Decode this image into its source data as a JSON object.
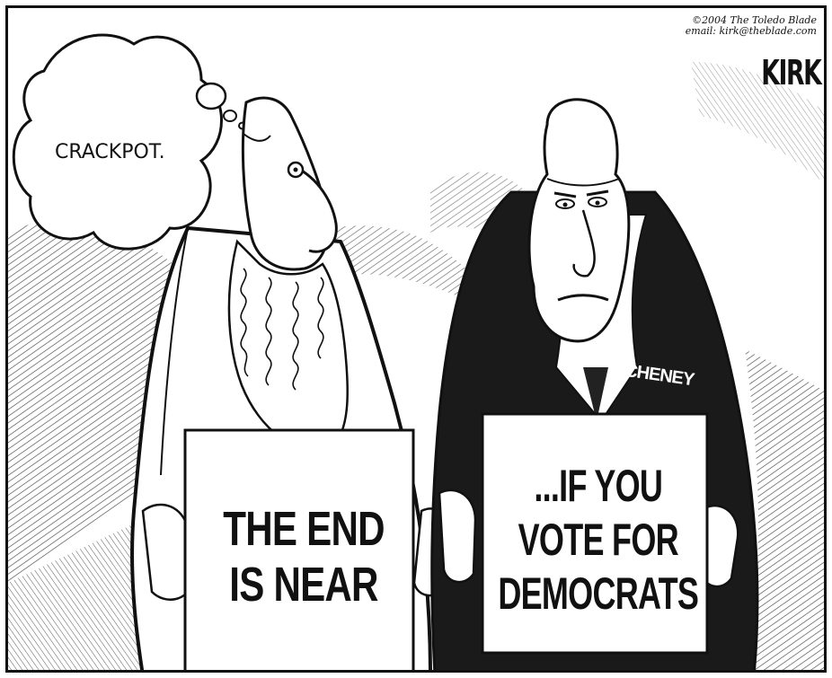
{
  "cartoon": {
    "credit": "©2004 The Toledo Blade\nemail: kirk@theblade.com",
    "signature": "KIRK",
    "thought_bubble": "CRACKPOT.",
    "left_sign": "THE END\nIS NEAR",
    "right_sign": "...IF YOU\nVOTE FOR\nDEMOCRATS",
    "name_label": "CHENEY"
  },
  "colors": {
    "ink": "#111111",
    "paper": "#ffffff",
    "shading": "#555555"
  }
}
